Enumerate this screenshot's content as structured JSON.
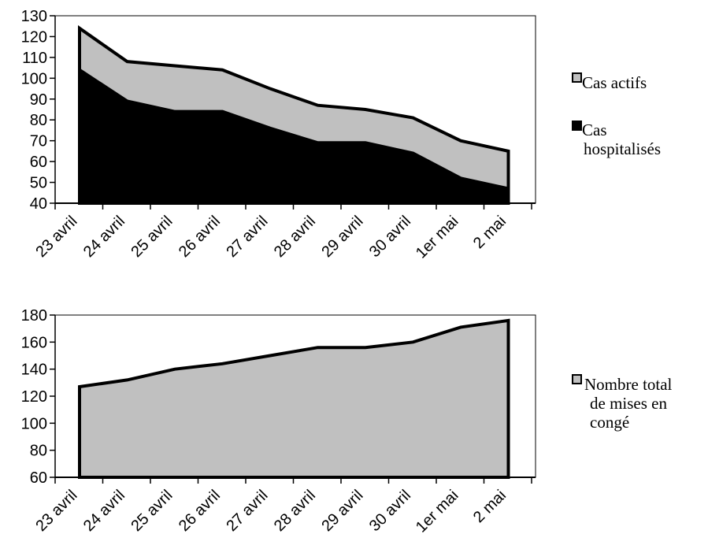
{
  "chart_data": [
    {
      "type": "area",
      "stacked": false,
      "categories": [
        "23 avril",
        "24 avril",
        "25 avril",
        "26 avril",
        "27 avril",
        "28 avril",
        "29 avril",
        "30 avril",
        "1er mai",
        "2 mai"
      ],
      "series": [
        {
          "name": "Cas actifs",
          "color": "#c0c0c0",
          "values": [
            124,
            108,
            106,
            104,
            95,
            87,
            85,
            81,
            70,
            65
          ]
        },
        {
          "name": "Cas hospitalisés",
          "name_lines": [
            "Cas",
            "hospitalisés"
          ],
          "color": "#000000",
          "values": [
            104,
            89,
            84,
            84,
            76,
            69,
            69,
            64,
            52,
            47
          ]
        }
      ],
      "ylim": [
        40,
        130
      ],
      "yticks": [
        40,
        50,
        60,
        70,
        80,
        90,
        100,
        110,
        120,
        130
      ],
      "grid": false,
      "legend_position": "right"
    },
    {
      "type": "area",
      "categories": [
        "23 avril",
        "24 avril",
        "25 avril",
        "26 avril",
        "27 avril",
        "28 avril",
        "29 avril",
        "30 avril",
        "1er mai",
        "2 mai"
      ],
      "series": [
        {
          "name": "Nombre total de mises en congé",
          "name_lines": [
            "Nombre total",
            "de mises en",
            "congé"
          ],
          "color": "#c0c0c0",
          "values": [
            127,
            132,
            140,
            144,
            150,
            156,
            156,
            160,
            171,
            176
          ]
        }
      ],
      "ylim": [
        60,
        180
      ],
      "yticks": [
        60,
        80,
        100,
        120,
        140,
        160,
        180
      ],
      "grid": false,
      "legend_position": "right"
    }
  ]
}
